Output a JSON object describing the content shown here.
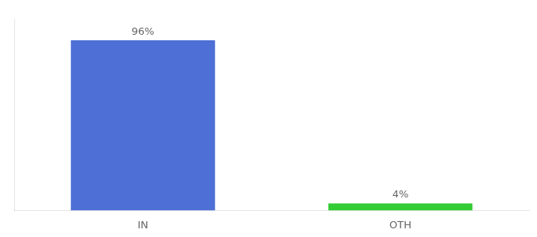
{
  "chart_data": {
    "type": "bar",
    "categories": [
      "IN",
      "OTH"
    ],
    "values": [
      96,
      4
    ],
    "value_labels": [
      "96%",
      "4%"
    ],
    "data_labels": true,
    "colors": [
      "#4d6fd6",
      "#33cc33"
    ],
    "ylim": [
      0,
      108
    ],
    "tick_labels": "x",
    "grid": false
  }
}
